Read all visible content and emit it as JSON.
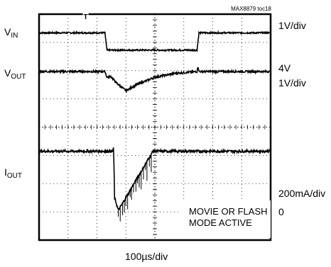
{
  "header": {
    "figure_id": "MAX8879 toc18"
  },
  "chart_data": {
    "type": "line",
    "grid": true,
    "divisions": {
      "x": 8,
      "y": 8
    },
    "time_scale": "100µs/div",
    "channels": [
      {
        "name_main": "V",
        "name_sub": "IN",
        "scale": "1V/div",
        "offset": "",
        "trace": [
          [
            0,
            -0.05
          ],
          [
            3.4,
            -0.05
          ],
          [
            3.45,
            -0.5
          ],
          [
            3.5,
            -0.95
          ],
          [
            8.2,
            -0.95
          ],
          [
            8.25,
            -0.5
          ],
          [
            8.3,
            -0.05
          ],
          [
            12,
            -0.05
          ]
        ],
        "noise": 0.04
      },
      {
        "name_main": "V",
        "name_sub": "OUT",
        "scale": "1V/div",
        "offset": "4V",
        "trace": [
          [
            0,
            0
          ],
          [
            3.4,
            0
          ],
          [
            3.5,
            -0.3
          ],
          [
            3.7,
            -0.25
          ],
          [
            4.0,
            -0.6
          ],
          [
            4.5,
            -1.0
          ],
          [
            5.0,
            -0.7
          ],
          [
            6.0,
            -0.3
          ],
          [
            7.0,
            -0.1
          ],
          [
            8.2,
            0
          ],
          [
            8.25,
            0.3
          ],
          [
            8.3,
            0
          ],
          [
            12,
            0
          ]
        ],
        "noise": 0.05
      },
      {
        "name_main": "I",
        "name_sub": "OUT",
        "scale": "200mA/div",
        "offset": "0",
        "trace": [
          [
            0,
            6.0
          ],
          [
            3.8,
            6.0
          ],
          [
            3.85,
            6.3
          ],
          [
            3.9,
            1.6
          ],
          [
            4.1,
            0.4
          ],
          [
            5.9,
            6.0
          ],
          [
            12,
            6.0
          ]
        ],
        "noise": 0.12
      }
    ],
    "annotation": {
      "line1": "MOVIE OR FLASH",
      "line2": "MODE ACTIVE"
    },
    "trigger_marker": "T"
  }
}
